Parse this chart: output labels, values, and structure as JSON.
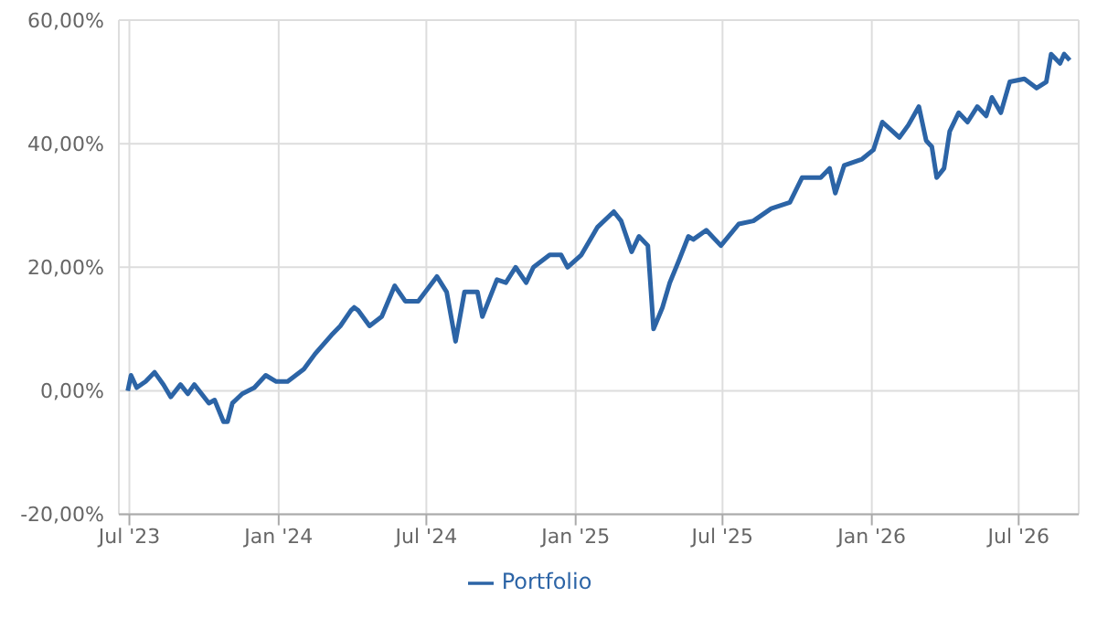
{
  "chart_data": {
    "type": "line",
    "x": [
      "2023-06-29",
      "2023-07-03",
      "2023-07-10",
      "2023-07-21",
      "2023-08-01",
      "2023-08-12",
      "2023-08-21",
      "2023-09-02",
      "2023-09-11",
      "2023-09-19",
      "2023-10-07",
      "2023-10-14",
      "2023-10-25",
      "2023-10-30",
      "2023-11-05",
      "2023-11-17",
      "2023-12-02",
      "2023-12-16",
      "2023-12-29",
      "2024-01-12",
      "2024-02-01",
      "2024-02-15",
      "2024-03-06",
      "2024-03-17",
      "2024-03-30",
      "2024-04-03",
      "2024-04-08",
      "2024-04-22",
      "2024-05-07",
      "2024-05-23",
      "2024-06-05",
      "2024-06-21",
      "2024-07-14",
      "2024-07-26",
      "2024-08-06",
      "2024-08-17",
      "2024-09-02",
      "2024-09-08",
      "2024-09-26",
      "2024-10-07",
      "2024-10-19",
      "2024-11-01",
      "2024-11-10",
      "2024-11-30",
      "2024-12-14",
      "2024-12-22",
      "2025-01-08",
      "2025-01-28",
      "2025-02-17",
      "2025-02-26",
      "2025-03-11",
      "2025-03-20",
      "2025-03-31",
      "2025-04-07",
      "2025-04-18",
      "2025-04-27",
      "2025-05-08",
      "2025-05-20",
      "2025-05-26",
      "2025-06-11",
      "2025-06-29",
      "2025-07-21",
      "2025-08-08",
      "2025-08-30",
      "2025-09-22",
      "2025-10-07",
      "2025-10-30",
      "2025-11-10",
      "2025-11-17",
      "2025-11-28",
      "2025-12-20",
      "2026-01-03",
      "2026-01-14",
      "2026-02-04",
      "2026-02-15",
      "2026-02-28",
      "2026-03-09",
      "2026-03-16",
      "2026-03-22",
      "2026-03-31",
      "2026-04-07",
      "2026-04-18",
      "2026-04-29",
      "2026-05-11",
      "2026-05-22",
      "2026-05-29",
      "2026-06-09",
      "2026-06-20",
      "2026-07-08",
      "2026-07-23",
      "2026-08-04",
      "2026-08-10",
      "2026-08-21",
      "2026-08-26",
      "2026-09-02"
    ],
    "series": [
      {
        "name": "Portfolio",
        "color": "#2c64a6",
        "values": [
          0,
          2.5,
          0.5,
          1.5,
          3,
          1,
          -1,
          1,
          -0.5,
          1,
          -2,
          -1.5,
          -5,
          -5,
          -2,
          -0.5,
          0.5,
          2.5,
          1.5,
          1.5,
          3.5,
          6,
          9,
          10.5,
          13,
          13.5,
          13,
          10.5,
          12,
          17,
          14.5,
          14.5,
          18.5,
          16,
          8,
          16,
          16,
          12,
          18,
          17.5,
          20,
          17.5,
          20,
          22,
          22,
          20,
          22,
          26.5,
          29,
          27.5,
          22.5,
          25,
          23.5,
          10,
          13.5,
          17.5,
          21,
          25,
          24.5,
          26,
          23.5,
          27,
          27.5,
          29.5,
          30.5,
          34.5,
          34.5,
          36,
          32,
          36.5,
          37.5,
          39,
          43.5,
          41,
          43,
          46,
          40.5,
          39.5,
          34.5,
          36,
          42,
          45,
          43.5,
          46,
          44.5,
          47.5,
          45,
          50,
          50.5,
          49,
          50,
          54.5,
          53,
          54.5,
          53.5
        ]
      }
    ],
    "xlim": [
      "2023-06-18",
      "2026-09-13"
    ],
    "xticks": [
      {
        "value": "2023-07",
        "label": "Jul '23"
      },
      {
        "value": "2024-01",
        "label": "Jan '24"
      },
      {
        "value": "2024-07",
        "label": "Jul '24"
      },
      {
        "value": "2025-01",
        "label": "Jan '25"
      },
      {
        "value": "2025-07",
        "label": "Jul '25"
      },
      {
        "value": "2026-01",
        "label": "Jan '26"
      },
      {
        "value": "2026-07",
        "label": "Jul '26"
      }
    ],
    "ylim": [
      -20,
      60
    ],
    "yticks": [
      {
        "value": -20,
        "label": "-20,00%"
      },
      {
        "value": 0,
        "label": "0,00%"
      },
      {
        "value": 20,
        "label": "20,00%"
      },
      {
        "value": 40,
        "label": "40,00%"
      },
      {
        "value": 60,
        "label": "60,00%"
      }
    ],
    "grid": true,
    "legend": "bottom",
    "marker": "none",
    "line_style": "solid"
  }
}
